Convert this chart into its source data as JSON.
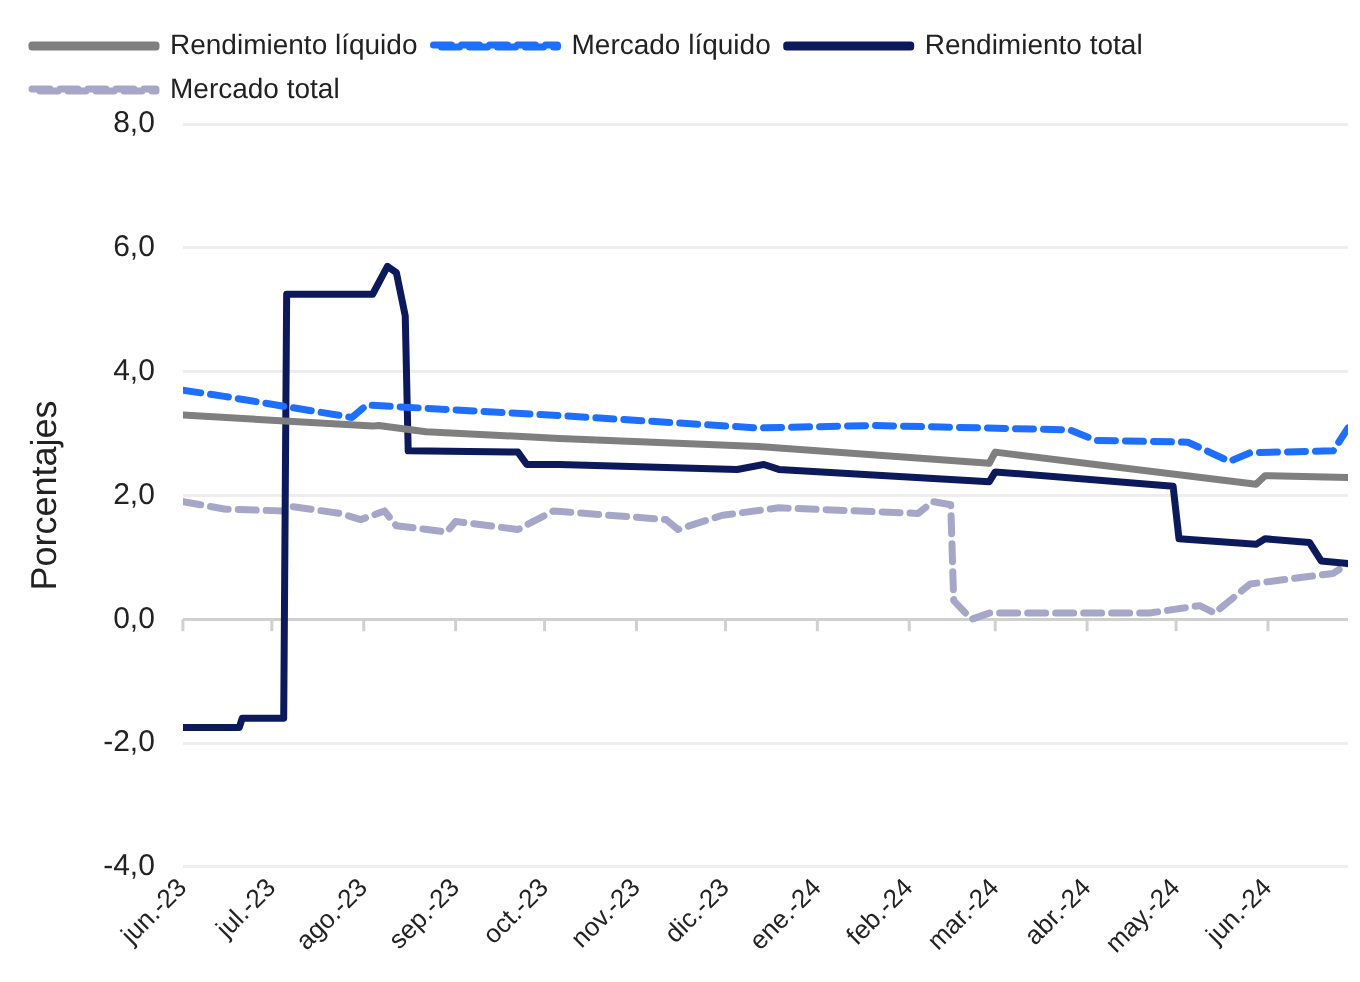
{
  "chart_data": {
    "type": "line",
    "ylabel": "Porcentajes",
    "legend": "top",
    "grid": "y",
    "marker": "none",
    "xlim": [
      "2023-06-01",
      "2024-06-28"
    ],
    "xticks": [
      {
        "value": "2023-06-01",
        "label": "jun.-23"
      },
      {
        "value": "2023-07-01",
        "label": "jul.-23"
      },
      {
        "value": "2023-08-01",
        "label": "ago.-23"
      },
      {
        "value": "2023-09-01",
        "label": "sep.-23"
      },
      {
        "value": "2023-10-01",
        "label": "oct.-23"
      },
      {
        "value": "2023-11-01",
        "label": "nov.-23"
      },
      {
        "value": "2023-12-01",
        "label": "dic.-23"
      },
      {
        "value": "2024-01-01",
        "label": "ene.-24"
      },
      {
        "value": "2024-02-01",
        "label": "feb.-24"
      },
      {
        "value": "2024-03-01",
        "label": "mar.-24"
      },
      {
        "value": "2024-04-01",
        "label": "abr.-24"
      },
      {
        "value": "2024-05-01",
        "label": "may.-24"
      },
      {
        "value": "2024-06-01",
        "label": "jun.-24"
      }
    ],
    "ylim": [
      -4,
      8
    ],
    "yticks": [
      {
        "value": -4,
        "label": "-4,0"
      },
      {
        "value": -2,
        "label": "-2,0"
      },
      {
        "value": 0,
        "label": "0,0"
      },
      {
        "value": 2,
        "label": "2,0"
      },
      {
        "value": 4,
        "label": "4,0"
      },
      {
        "value": 6,
        "label": "6,0"
      },
      {
        "value": 8,
        "label": "8,0"
      }
    ],
    "series": [
      {
        "name": "Rendimiento líquido",
        "color": "#7f7f7f",
        "line_style": "solid",
        "x": [
          "2023-06-01",
          "2023-08-04",
          "2023-08-06",
          "2023-08-22",
          "2023-10-06",
          "2023-12-12",
          "2024-02-28",
          "2024-03-01",
          "2024-05-28",
          "2024-05-31",
          "2024-06-28"
        ],
        "values": [
          3.3,
          3.12,
          3.13,
          3.03,
          2.92,
          2.79,
          2.52,
          2.7,
          2.18,
          2.32,
          2.29
        ]
      },
      {
        "name": "Mercado líquido",
        "color": "#1f6fff",
        "line_style": "dashed",
        "x": [
          "2023-06-01",
          "2023-06-15",
          "2023-07-28",
          "2023-08-02",
          "2023-10-06",
          "2023-12-12",
          "2024-01-20",
          "2024-03-26",
          "2024-04-04",
          "2024-05-05",
          "2024-05-19",
          "2024-05-26",
          "2024-06-23",
          "2024-06-28"
        ],
        "values": [
          3.7,
          3.6,
          3.26,
          3.46,
          3.29,
          3.09,
          3.13,
          3.06,
          2.89,
          2.86,
          2.55,
          2.69,
          2.72,
          3.09
        ]
      },
      {
        "name": "Rendimiento total",
        "color": "#0c1a5c",
        "line_style": "solid",
        "x": [
          "2023-06-01",
          "2023-06-20",
          "2023-06-21",
          "2023-07-05",
          "2023-07-06",
          "2023-08-04",
          "2023-08-09",
          "2023-08-12",
          "2023-08-15",
          "2023-08-16",
          "2023-09-22",
          "2023-09-25",
          "2023-10-06",
          "2023-12-05",
          "2023-12-14",
          "2023-12-19",
          "2024-02-28",
          "2024-03-01",
          "2024-04-30",
          "2024-05-02",
          "2024-05-28",
          "2024-05-31",
          "2024-06-15",
          "2024-06-19",
          "2024-06-28"
        ],
        "values": [
          -1.75,
          -1.75,
          -1.6,
          -1.6,
          5.25,
          5.25,
          5.7,
          5.6,
          4.9,
          2.72,
          2.7,
          2.5,
          2.5,
          2.42,
          2.5,
          2.42,
          2.22,
          2.38,
          2.15,
          1.3,
          1.21,
          1.3,
          1.24,
          0.94,
          0.9
        ]
      },
      {
        "name": "Mercado total",
        "color": "#a6a6c8",
        "line_style": "dashed",
        "x": [
          "2023-06-01",
          "2023-06-15",
          "2023-07-05",
          "2023-07-08",
          "2023-07-24",
          "2023-07-31",
          "2023-08-08",
          "2023-08-12",
          "2023-08-29",
          "2023-09-01",
          "2023-09-22",
          "2023-10-04",
          "2023-11-11",
          "2023-11-15",
          "2023-11-30",
          "2023-12-19",
          "2024-02-04",
          "2024-02-09",
          "2024-02-15",
          "2024-02-16",
          "2024-02-22",
          "2024-02-28",
          "2024-04-22",
          "2024-05-09",
          "2024-05-14",
          "2024-05-26",
          "2024-06-23",
          "2024-06-28"
        ],
        "values": [
          1.9,
          1.78,
          1.75,
          1.82,
          1.71,
          1.61,
          1.75,
          1.51,
          1.41,
          1.58,
          1.45,
          1.75,
          1.61,
          1.45,
          1.68,
          1.8,
          1.71,
          1.9,
          1.85,
          0.3,
          0.0,
          0.1,
          0.1,
          0.22,
          0.1,
          0.57,
          0.74,
          0.9
        ]
      }
    ]
  }
}
